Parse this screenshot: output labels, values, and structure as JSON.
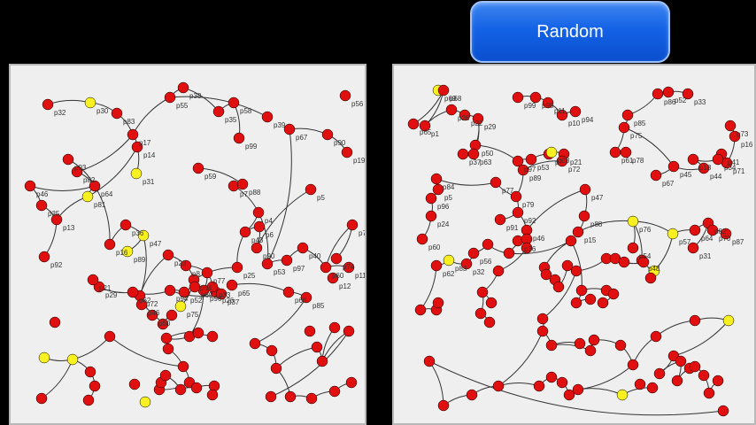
{
  "toolbar": {
    "random_label": "Random"
  },
  "colors": {
    "node_default": "#e01010",
    "node_selected": "#f8f020",
    "edge": "#333333",
    "panel_bg": "#efefef"
  },
  "left_graph": {
    "label_list": [
      "p32",
      "p30",
      "p83",
      "p17",
      "p55",
      "p38",
      "p35",
      "p58",
      "p99",
      "p39",
      "p56",
      "p67",
      "p90",
      "p19",
      "p14",
      "p31",
      "p59",
      "p7",
      "p93",
      "p82",
      "p64",
      "p46",
      "p35",
      "p13",
      "p92",
      "p16",
      "p81",
      "p36",
      "p47",
      "p89",
      "p72",
      "p23",
      "p8",
      "p54",
      "p75",
      "p77",
      "p96",
      "p25",
      "p88",
      "p4",
      "p43",
      "p6",
      "p90",
      "p5",
      "p53",
      "p97",
      "p40",
      "p60",
      "p11",
      "p7",
      "p74",
      "p12",
      "p29",
      "p21",
      "p62",
      "p94",
      "p52",
      "p69",
      "p26",
      "p65",
      "p66",
      "p85",
      "p33",
      "p37",
      "p46",
      "p50"
    ]
  },
  "right_graph": {
    "label_list": [
      "p69",
      "p68",
      "p65",
      "p1",
      "p26",
      "p22",
      "p29",
      "p50",
      "p63",
      "p37",
      "p99",
      "p98",
      "p11",
      "p10",
      "p94",
      "p86",
      "p52",
      "p33",
      "p85",
      "p75",
      "p73",
      "p16",
      "p71",
      "p41",
      "p97",
      "p53",
      "p7",
      "p28",
      "p21",
      "p89",
      "p72",
      "p61",
      "p78",
      "p67",
      "p45",
      "p44",
      "p18",
      "p34",
      "p84",
      "p5",
      "p96",
      "p77",
      "p79",
      "p92",
      "p91",
      "p46",
      "p36",
      "p47",
      "p88",
      "p15",
      "p76",
      "p54",
      "p48",
      "p57",
      "p64",
      "p82",
      "p31",
      "p87",
      "p70",
      "p24",
      "p60",
      "p62",
      "p83",
      "p32",
      "p56"
    ]
  }
}
